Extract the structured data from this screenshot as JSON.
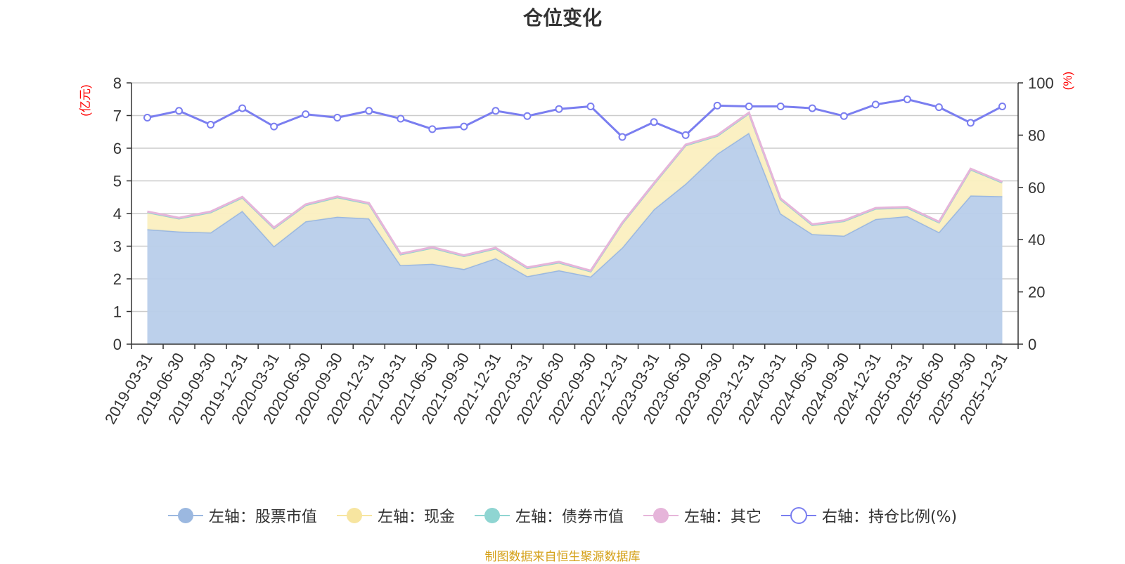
{
  "chart_data": {
    "type": "area",
    "title": "仓位变化",
    "left_axis_label": "(亿元)",
    "right_axis_label": "(%)",
    "left_ylim": [
      0,
      8
    ],
    "left_ticks": [
      0,
      1,
      2,
      3,
      4,
      5,
      6,
      7,
      8
    ],
    "right_ylim": [
      0,
      100
    ],
    "right_ticks": [
      0,
      20,
      40,
      60,
      80,
      100
    ],
    "grid": true,
    "legend_position": "bottom",
    "categories": [
      "2019-03-31",
      "2019-06-30",
      "2019-09-30",
      "2019-12-31",
      "2020-03-31",
      "2020-06-30",
      "2020-09-30",
      "2020-12-31",
      "2021-03-31",
      "2021-06-30",
      "2021-09-30",
      "2021-12-31",
      "2022-03-31",
      "2022-06-30",
      "2022-09-30",
      "2022-12-31",
      "2023-03-31",
      "2023-06-30",
      "2023-09-30",
      "2023-12-31",
      "2024-03-31",
      "2024-06-30",
      "2024-09-30",
      "2024-12-31",
      "2025-03-31",
      "2025-06-30",
      "2025-09-30",
      "2025-12-31"
    ],
    "series": [
      {
        "name": "左轴：股票市值",
        "axis": "left",
        "kind": "stacked-area",
        "color": "#9bb8e0",
        "fill": "#b8cdea",
        "values": [
          3.52,
          3.45,
          3.42,
          4.08,
          3.0,
          3.76,
          3.9,
          3.85,
          2.42,
          2.46,
          2.3,
          2.63,
          2.08,
          2.26,
          2.07,
          2.96,
          4.13,
          4.91,
          5.83,
          6.47,
          4.0,
          3.37,
          3.32,
          3.83,
          3.92,
          3.43,
          4.55,
          4.53
        ]
      },
      {
        "name": "左轴：现金",
        "axis": "left",
        "kind": "stacked-area",
        "color": "#f7e5a0",
        "fill": "#fbefc0",
        "values": [
          0.52,
          0.4,
          0.62,
          0.41,
          0.55,
          0.5,
          0.6,
          0.45,
          0.33,
          0.49,
          0.4,
          0.3,
          0.25,
          0.24,
          0.16,
          0.74,
          0.78,
          1.18,
          0.55,
          0.6,
          0.44,
          0.28,
          0.45,
          0.32,
          0.26,
          0.3,
          0.8,
          0.42
        ]
      },
      {
        "name": "左轴：债券市值",
        "axis": "left",
        "kind": "stacked-area",
        "color": "#8fd5d2",
        "fill": "#a8e0dd",
        "values": [
          0,
          0,
          0,
          0,
          0,
          0,
          0,
          0,
          0,
          0,
          0,
          0,
          0,
          0,
          0,
          0,
          0,
          0,
          0,
          0,
          0,
          0,
          0,
          0,
          0,
          0,
          0,
          0
        ]
      },
      {
        "name": "左轴：其它",
        "axis": "left",
        "kind": "stacked-area",
        "color": "#e6b5da",
        "fill": "#f0cce6",
        "values": [
          0.02,
          0.02,
          0.02,
          0.02,
          0.02,
          0.02,
          0.02,
          0.02,
          0.02,
          0.02,
          0.02,
          0.02,
          0.02,
          0.02,
          0.02,
          0.02,
          0.02,
          0.02,
          0.02,
          0.02,
          0.02,
          0.02,
          0.02,
          0.02,
          0.02,
          0.02,
          0.02,
          0.02
        ]
      },
      {
        "name": "右轴：持仓比例(%)",
        "axis": "right",
        "kind": "line",
        "color": "#7a7ef0",
        "values": [
          86.7,
          89.3,
          84.0,
          90.3,
          83.3,
          88.0,
          86.7,
          89.3,
          86.3,
          82.3,
          83.3,
          89.3,
          87.3,
          90.0,
          91.0,
          79.3,
          85.0,
          80.0,
          91.3,
          91.0,
          91.0,
          90.3,
          87.3,
          91.7,
          93.7,
          90.7,
          84.7,
          91.0
        ]
      }
    ]
  },
  "source_note": "制图数据来自恒生聚源数据库"
}
